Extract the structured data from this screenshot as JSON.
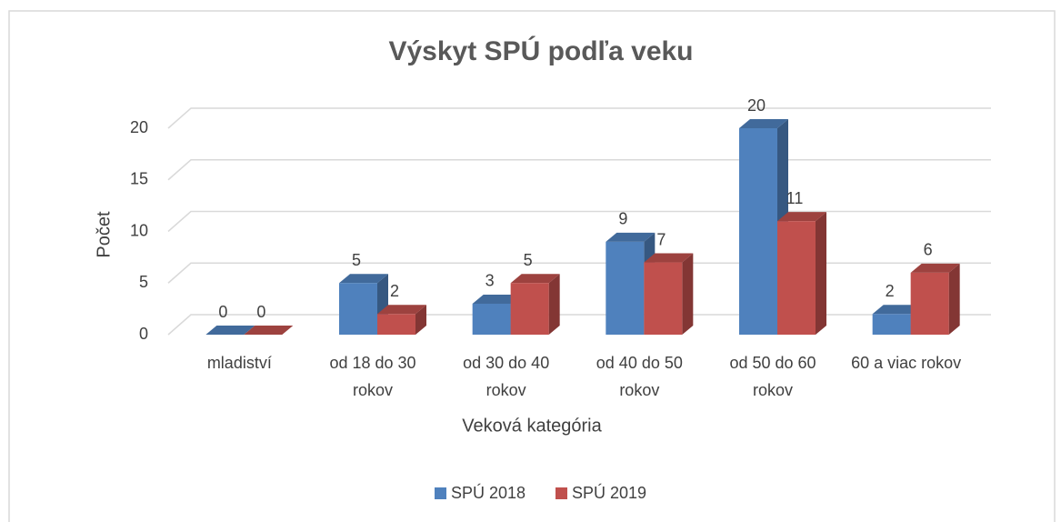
{
  "chart_data": {
    "type": "bar3d",
    "title": "Výskyt SPÚ podľa veku",
    "x_label": "Veková kategória",
    "y_label": "Počet",
    "categories": [
      "mladiství",
      "od 18 do 30 rokov",
      "od 30 do 40 rokov",
      "od 40 do 50 rokov",
      "od 50 do 60 rokov",
      "60 a viac rokov"
    ],
    "series": [
      {
        "name": "SPÚ 2018",
        "color": "#4f81bd",
        "values": [
          0,
          5,
          3,
          9,
          20,
          2
        ]
      },
      {
        "name": "SPÚ 2019",
        "color": "#c0504d",
        "values": [
          0,
          2,
          5,
          7,
          11,
          6
        ]
      }
    ],
    "ylim": [
      0,
      20
    ],
    "yticks": [
      0,
      5,
      10,
      15,
      20
    ],
    "grid": true,
    "legend": "bottom"
  }
}
